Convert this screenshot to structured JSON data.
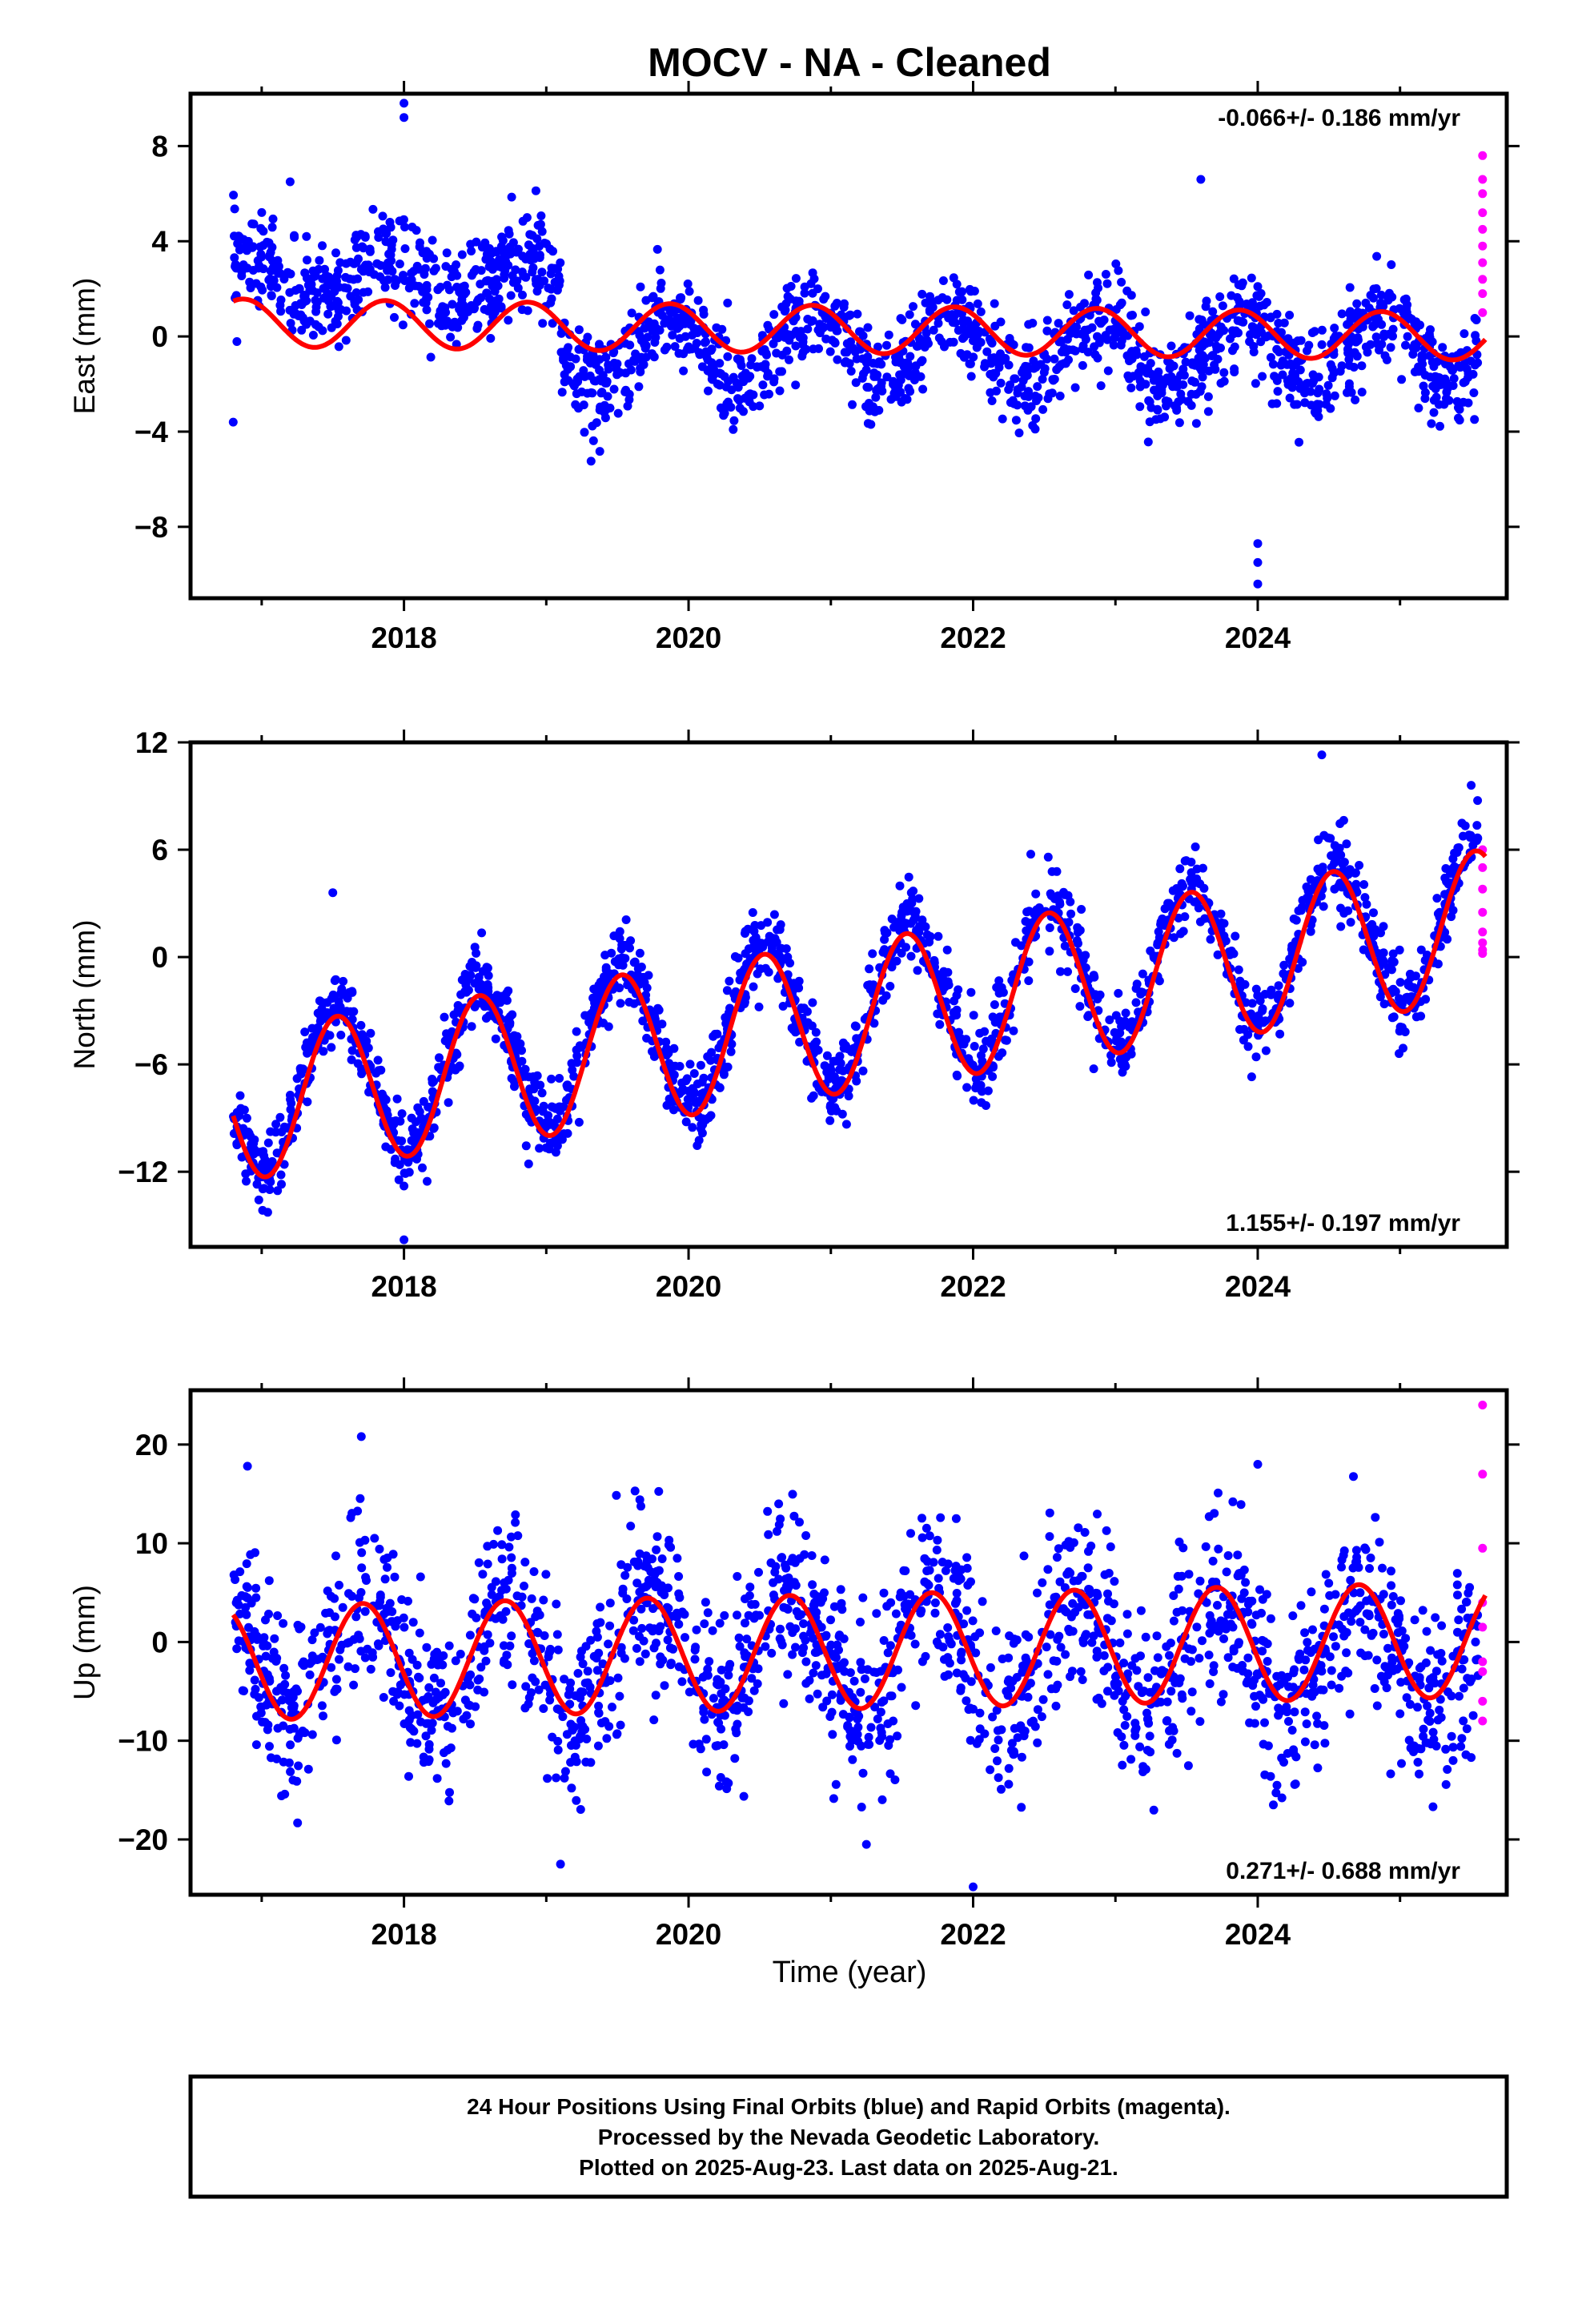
{
  "title": "MOCV  - NA - Cleaned",
  "x_axis_label": "Time (year)",
  "footer": {
    "line1": "24 Hour Positions Using Final Orbits (blue) and Rapid Orbits (magenta).",
    "line2": "Processed by the Nevada Geodetic Laboratory.",
    "line3": "Plotted on 2025-Aug-23. Last data on 2025-Aug-21."
  },
  "colors": {
    "final_orbits": "#0000ff",
    "rapid_orbits": "#ff00ff",
    "model_fit": "#ff0000",
    "frame": "#000000"
  },
  "chart_data": [
    {
      "type": "scatter",
      "component": "east",
      "ylabel": "East (mm)",
      "rate_label": "-0.066+/- 0.186 mm/yr",
      "xlim": [
        2016.5,
        2025.75
      ],
      "ylim": [
        -11,
        10.2
      ],
      "x_ticks": [
        2018,
        2020,
        2022,
        2024
      ],
      "y_ticks": [
        -8,
        -4,
        0,
        4,
        8
      ],
      "y_tick_labels": [
        "−8",
        "−4",
        "0",
        "4",
        "8"
      ],
      "data_range": [
        2016.8,
        2025.55
      ],
      "rapid_range": [
        2025.52,
        2025.62
      ],
      "series": [
        {
          "name": "Final Orbits",
          "color": "#0000ff",
          "segments": [
            {
              "x0": 2016.8,
              "x1": 2019.1,
              "level": 2.4,
              "amp": 0.9,
              "phase": 0.62,
              "scatter": 1.0
            },
            {
              "x0": 2019.1,
              "x1": 2025.55,
              "level": -0.6,
              "amp": 1.4,
              "phase": 0.62,
              "scatter": 1.0
            }
          ]
        },
        {
          "name": "Rapid Orbits",
          "color": "#ff00ff",
          "x": [
            2025.58,
            2025.58,
            2025.58,
            2025.58,
            2025.58,
            2025.58,
            2025.58,
            2025.58,
            2025.58,
            2025.58
          ],
          "y": [
            7.6,
            6.6,
            6.0,
            5.2,
            4.5,
            3.8,
            3.1,
            2.4,
            1.8,
            1.0
          ]
        },
        {
          "name": "Model",
          "color": "#ff0000",
          "trend": -0.066,
          "offset": 0.3,
          "amp": 1.0,
          "phase": 0.62,
          "range": [
            2016.8,
            2025.6
          ]
        }
      ],
      "outliers": [
        [
          2018.0,
          9.8
        ],
        [
          2018.0,
          9.2
        ],
        [
          2016.8,
          -3.6
        ],
        [
          2024.0,
          -8.7
        ],
        [
          2024.0,
          -9.5
        ],
        [
          2024.0,
          -10.4
        ],
        [
          2023.6,
          6.6
        ],
        [
          2017.2,
          6.5
        ]
      ]
    },
    {
      "type": "scatter",
      "component": "north",
      "ylabel": "North (mm)",
      "rate_label": "1.155+/- 0.197 mm/yr",
      "xlim": [
        2016.5,
        2025.75
      ],
      "ylim": [
        -16.2,
        12
      ],
      "x_ticks": [
        2018,
        2020,
        2022,
        2024
      ],
      "y_ticks": [
        -12,
        -6,
        0,
        6,
        12
      ],
      "y_tick_labels": [
        "−12",
        "−6",
        "0",
        "6",
        "12"
      ],
      "data_range": [
        2016.8,
        2025.55
      ],
      "rapid_range": [
        2025.52,
        2025.62
      ],
      "series": [
        {
          "name": "Final Orbits",
          "color": "#0000ff",
          "segments": [
            {
              "x0": 2016.8,
              "x1": 2025.55,
              "level": -3.0,
              "amp": 4.2,
              "phase": 0.28,
              "scatter": 1.1
            }
          ]
        },
        {
          "name": "Rapid Orbits",
          "color": "#ff00ff",
          "x": [
            2025.58,
            2025.58,
            2025.58,
            2025.58,
            2025.58,
            2025.58,
            2025.58,
            2025.58
          ],
          "y": [
            6.0,
            5.0,
            3.8,
            2.5,
            1.4,
            0.8,
            0.4,
            0.2
          ]
        },
        {
          "name": "Model",
          "color": "#ff0000",
          "trend": 1.155,
          "offset": -3.5,
          "amp": 4.2,
          "phase": 0.28,
          "range": [
            2016.8,
            2025.6
          ]
        }
      ],
      "outliers": [
        [
          2018.0,
          -15.8
        ],
        [
          2018.0,
          -12.8
        ],
        [
          2017.5,
          3.6
        ],
        [
          2024.45,
          11.3
        ],
        [
          2025.5,
          9.6
        ]
      ]
    },
    {
      "type": "scatter",
      "component": "up",
      "ylabel": "Up (mm)",
      "rate_label": "0.271+/- 0.688 mm/yr",
      "xlim": [
        2016.5,
        2025.75
      ],
      "ylim": [
        -25.6,
        25.5
      ],
      "x_ticks": [
        2018,
        2020,
        2022,
        2024
      ],
      "y_ticks": [
        -20,
        -10,
        0,
        10,
        20
      ],
      "y_tick_labels": [
        "−20",
        "−10",
        "0",
        "10",
        "20"
      ],
      "data_range": [
        2016.8,
        2025.55
      ],
      "rapid_range": [
        2025.52,
        2025.62
      ],
      "series": [
        {
          "name": "Final Orbits",
          "color": "#0000ff",
          "segments": [
            {
              "x0": 2016.8,
              "x1": 2025.55,
              "level": -1.2,
              "amp": 5.8,
              "phase": 0.46,
              "scatter": 4.5
            }
          ]
        },
        {
          "name": "Rapid Orbits",
          "color": "#ff00ff",
          "x": [
            2025.58,
            2025.58,
            2025.58,
            2025.58,
            2025.58,
            2025.58,
            2025.58,
            2025.58,
            2025.58
          ],
          "y": [
            24.0,
            17.0,
            9.5,
            4.0,
            1.5,
            -2.0,
            -3.0,
            -6.0,
            -8.0
          ]
        },
        {
          "name": "Model",
          "color": "#ff0000",
          "trend": 0.271,
          "offset": -1.0,
          "amp": 5.8,
          "phase": 0.46,
          "range": [
            2016.8,
            2025.6
          ]
        }
      ],
      "outliers": [
        [
          2016.9,
          17.8
        ],
        [
          2017.7,
          20.8
        ],
        [
          2019.1,
          -22.5
        ],
        [
          2022.0,
          -24.8
        ],
        [
          2021.25,
          -20.5
        ],
        [
          2024.0,
          18.0
        ],
        [
          2025.5,
          -11.7
        ]
      ]
    }
  ]
}
